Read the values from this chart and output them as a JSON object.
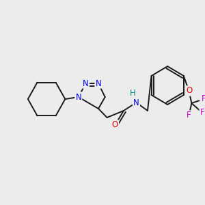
{
  "background_color": "#ececec",
  "figsize": [
    3.0,
    3.0
  ],
  "dpi": 100,
  "atom_colors": {
    "N": "#0000ee",
    "O": "#dd0000",
    "F": "#cc00cc",
    "C": "#000000",
    "H": "#008888"
  },
  "bond_color": "#1a1a1a",
  "bond_lw": 1.4,
  "font_size": 8.5
}
